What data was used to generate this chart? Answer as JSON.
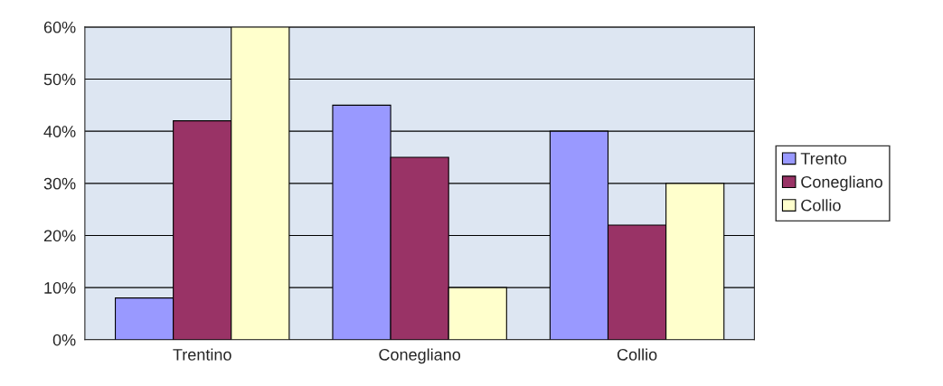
{
  "chart_data": {
    "type": "bar",
    "categories": [
      "Trentino",
      "Conegliano",
      "Collio"
    ],
    "series": [
      {
        "name": "Trento",
        "color": "#9999ff",
        "values": [
          8,
          45,
          40
        ]
      },
      {
        "name": "Conegliano",
        "color": "#993366",
        "values": [
          42,
          35,
          22
        ]
      },
      {
        "name": "Collio",
        "color": "#ffffcc",
        "values": [
          60,
          10,
          30
        ]
      }
    ],
    "ylim": [
      0,
      60
    ],
    "yticks": [
      {
        "value": 0,
        "label": "0%"
      },
      {
        "value": 10,
        "label": "10%"
      },
      {
        "value": 20,
        "label": "20%"
      },
      {
        "value": 30,
        "label": "30%"
      },
      {
        "value": 40,
        "label": "40%"
      },
      {
        "value": 50,
        "label": "50%"
      },
      {
        "value": 60,
        "label": "60%"
      }
    ],
    "grid": "y",
    "legend": "right"
  }
}
